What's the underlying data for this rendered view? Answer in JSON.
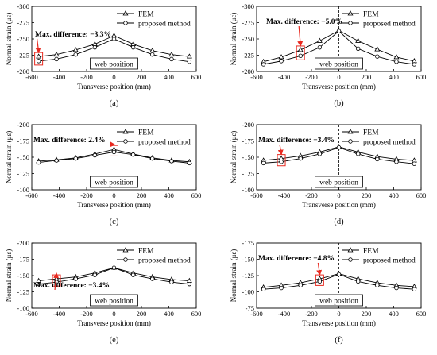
{
  "chart_data": [
    {
      "type": "line",
      "panel_label": "(a)",
      "xlabel": "Transverse position (mm)",
      "ylabel": "Normal strain (με)",
      "x": [
        -550,
        -420,
        -280,
        -140,
        0,
        140,
        280,
        420,
        550
      ],
      "xlim": [
        -600,
        600
      ],
      "xticks": [
        -600,
        -400,
        -200,
        0,
        200,
        400,
        600
      ],
      "ylim": [
        -200,
        -300
      ],
      "yticks": [
        -300,
        -275,
        -250,
        -225,
        -200
      ],
      "ytick_labels": [
        "-300",
        "-275",
        "-250",
        "-225",
        "-200"
      ],
      "series": [
        {
          "name": "FEM",
          "marker": "triangle",
          "values": [
            -223,
            -226,
            -233,
            -242,
            -255,
            -242,
            -232,
            -226,
            -223
          ]
        },
        {
          "name": "proposed method",
          "marker": "circle",
          "values": [
            -216,
            -219,
            -226,
            -237,
            -250,
            -237,
            -226,
            -219,
            -215
          ]
        }
      ],
      "annotation": {
        "text": "Max. difference: −3.3%",
        "x": -550
      },
      "web_label": "web position"
    },
    {
      "type": "line",
      "panel_label": "(b)",
      "xlabel": "Transverse position (mm)",
      "ylabel": "Normal strain (με)",
      "x": [
        -550,
        -420,
        -280,
        -140,
        0,
        140,
        280,
        420,
        550
      ],
      "xlim": [
        -600,
        600
      ],
      "xticks": [
        -600,
        -400,
        -200,
        0,
        200,
        400,
        600
      ],
      "ylim": [
        -200,
        -300
      ],
      "yticks": [
        -300,
        -275,
        -250,
        -225,
        -200
      ],
      "ytick_labels": [
        "-300",
        "-275",
        "-250",
        "-225",
        "-200"
      ],
      "series": [
        {
          "name": "FEM",
          "marker": "triangle",
          "values": [
            -215,
            -222,
            -233,
            -247,
            -263,
            -247,
            -234,
            -222,
            -216
          ]
        },
        {
          "name": "proposed method",
          "marker": "circle",
          "values": [
            -211,
            -216,
            -224,
            -237,
            -262,
            -235,
            -223,
            -215,
            -211
          ]
        }
      ],
      "annotation": {
        "text": "Max. difference: −5.0%",
        "x": -280
      },
      "web_label": "web position"
    },
    {
      "type": "line",
      "panel_label": "(c)",
      "xlabel": "Transverse position (mm)",
      "ylabel": "Normal strain (με)",
      "x": [
        -550,
        -420,
        -280,
        -140,
        0,
        140,
        280,
        420,
        550
      ],
      "xlim": [
        -600,
        600
      ],
      "xticks": [
        -600,
        -400,
        -200,
        0,
        200,
        400,
        600
      ],
      "ylim": [
        -100,
        -200
      ],
      "yticks": [
        -200,
        -175,
        -150,
        -125,
        -100
      ],
      "ytick_labels": [
        "-200",
        "-175",
        "-150",
        "-125",
        "-100"
      ],
      "series": [
        {
          "name": "FEM",
          "marker": "triangle",
          "values": [
            -144,
            -146,
            -149,
            -155,
            -162,
            -155,
            -149,
            -145,
            -143
          ]
        },
        {
          "name": "proposed method",
          "marker": "circle",
          "values": [
            -142,
            -145,
            -148,
            -153,
            -158,
            -154,
            -148,
            -144,
            -141
          ]
        }
      ],
      "annotation": {
        "text": "Max. difference: 2.4%",
        "x": 0
      },
      "web_label": "web position"
    },
    {
      "type": "line",
      "panel_label": "(d)",
      "xlabel": "Transverse position (mm)",
      "ylabel": "Normal strain (με)",
      "x": [
        -550,
        -420,
        -280,
        -140,
        0,
        140,
        280,
        420,
        550
      ],
      "xlim": [
        -600,
        600
      ],
      "xticks": [
        -600,
        -400,
        -200,
        0,
        200,
        400,
        600
      ],
      "ylim": [
        -100,
        -200
      ],
      "yticks": [
        -200,
        -175,
        -150,
        -125,
        -100
      ],
      "ytick_labels": [
        "-200",
        "-175",
        "-150",
        "-125",
        "-100"
      ],
      "series": [
        {
          "name": "FEM",
          "marker": "triangle",
          "values": [
            -145,
            -148,
            -152,
            -158,
            -166,
            -158,
            -151,
            -147,
            -145
          ]
        },
        {
          "name": "proposed method",
          "marker": "circle",
          "values": [
            -141,
            -143,
            -148,
            -155,
            -165,
            -155,
            -147,
            -143,
            -140
          ]
        }
      ],
      "annotation": {
        "text": "Max. difference: −3.4%",
        "x": -420
      },
      "web_label": "web position"
    },
    {
      "type": "line",
      "panel_label": "(e)",
      "xlabel": "Transverse position (mm)",
      "ylabel": "Normal strain (με)",
      "x": [
        -550,
        -420,
        -280,
        -140,
        0,
        140,
        280,
        420,
        550
      ],
      "xlim": [
        -600,
        600
      ],
      "xticks": [
        -600,
        -400,
        -200,
        0,
        200,
        400,
        600
      ],
      "ylim": [
        -100,
        -200
      ],
      "yticks": [
        -200,
        -175,
        -150,
        -125,
        -100
      ],
      "ytick_labels": [
        "-200",
        "-175",
        "-150",
        "-125",
        "-100"
      ],
      "series": [
        {
          "name": "FEM",
          "marker": "triangle",
          "values": [
            -142,
            -145,
            -148,
            -154,
            -162,
            -154,
            -148,
            -144,
            -142
          ]
        },
        {
          "name": "proposed method",
          "marker": "circle",
          "values": [
            -137,
            -140,
            -145,
            -151,
            -162,
            -151,
            -145,
            -140,
            -137
          ]
        }
      ],
      "annotation": {
        "text": "Max. difference: −3.4%",
        "x": -420
      },
      "web_label": "web position"
    },
    {
      "type": "line",
      "panel_label": "(f)",
      "xlabel": "Transverse position (mm)",
      "ylabel": "Normal strain (με)",
      "x": [
        -550,
        -420,
        -280,
        -140,
        0,
        140,
        280,
        420,
        550
      ],
      "xlim": [
        -600,
        600
      ],
      "xticks": [
        -600,
        -400,
        -200,
        0,
        200,
        400,
        600
      ],
      "ylim": [
        -75,
        -175
      ],
      "yticks": [
        -175,
        -150,
        -125,
        -100,
        -75
      ],
      "ytick_labels": [
        "-175",
        "-150",
        "-125",
        "-100",
        "-75"
      ],
      "series": [
        {
          "name": "FEM",
          "marker": "triangle",
          "values": [
            -107,
            -110,
            -114,
            -120,
            -128,
            -120,
            -114,
            -110,
            -108
          ]
        },
        {
          "name": "proposed method",
          "marker": "circle",
          "values": [
            -104,
            -106,
            -110,
            -116,
            -127,
            -116,
            -110,
            -106,
            -104
          ]
        }
      ],
      "annotation": {
        "text": "Max. difference: −4.8%",
        "x": -140
      },
      "web_label": "web position"
    }
  ],
  "colors": {
    "line": "#000000",
    "highlight": "#e8281e"
  }
}
